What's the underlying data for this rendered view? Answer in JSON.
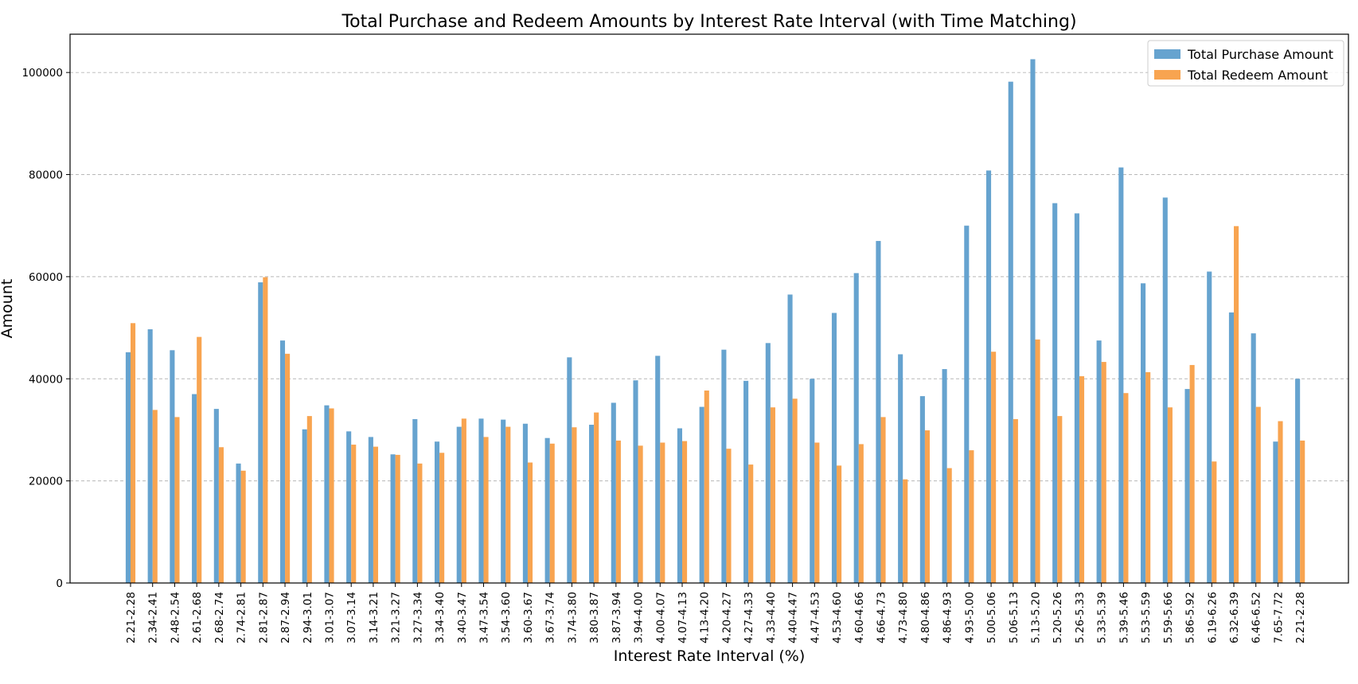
{
  "chart_data": {
    "type": "bar",
    "title": "Total Purchase and Redeem Amounts by Interest Rate Interval (with Time Matching)",
    "xlabel": "Interest Rate Interval (%)",
    "ylabel": "Amount",
    "ylim": [
      0,
      107500
    ],
    "yticks": [
      0,
      20000,
      40000,
      60000,
      80000,
      100000
    ],
    "grid": "y-dashed",
    "legend_position": "top-right",
    "categories": [
      "2.21-2.28",
      "2.34-2.41",
      "2.48-2.54",
      "2.61-2.68",
      "2.68-2.74",
      "2.74-2.81",
      "2.81-2.87",
      "2.87-2.94",
      "2.94-3.01",
      "3.01-3.07",
      "3.07-3.14",
      "3.14-3.21",
      "3.21-3.27",
      "3.27-3.34",
      "3.34-3.40",
      "3.40-3.47",
      "3.47-3.54",
      "3.54-3.60",
      "3.60-3.67",
      "3.67-3.74",
      "3.74-3.80",
      "3.80-3.87",
      "3.87-3.94",
      "3.94-4.00",
      "4.00-4.07",
      "4.07-4.13",
      "4.13-4.20",
      "4.20-4.27",
      "4.27-4.33",
      "4.33-4.40",
      "4.40-4.47",
      "4.47-4.53",
      "4.53-4.60",
      "4.60-4.66",
      "4.66-4.73",
      "4.73-4.80",
      "4.80-4.86",
      "4.86-4.93",
      "4.93-5.00",
      "5.00-5.06",
      "5.06-5.13",
      "5.13-5.20",
      "5.20-5.26",
      "5.26-5.33",
      "5.33-5.39",
      "5.39-5.46",
      "5.53-5.59",
      "5.59-5.66",
      "5.86-5.92",
      "6.19-6.26",
      "6.32-6.39",
      "6.46-6.52",
      "7.65-7.72",
      "2.21-2.28"
    ],
    "series": [
      {
        "name": "Total Purchase Amount",
        "color": "#66a3cf",
        "values": [
          45200,
          49700,
          45600,
          37000,
          34100,
          23400,
          58900,
          47500,
          30100,
          34800,
          29700,
          28600,
          25200,
          32100,
          27700,
          30600,
          32200,
          32000,
          31200,
          28400,
          44200,
          31000,
          35300,
          39700,
          44500,
          30300,
          34500,
          45700,
          39600,
          47000,
          56500,
          40000,
          52900,
          60700,
          67000,
          44800,
          36600,
          41900,
          70000,
          80800,
          98200,
          102600,
          74400,
          72400,
          47500,
          81400,
          58700,
          75500,
          38000,
          61000,
          53000,
          48900,
          27700,
          40000
        ]
      },
      {
        "name": "Total Redeem Amount",
        "color": "#f8a450",
        "values": [
          50900,
          33900,
          32500,
          48200,
          26600,
          22000,
          59900,
          44900,
          32700,
          34200,
          27100,
          26700,
          25100,
          23400,
          25500,
          32200,
          28600,
          30600,
          23600,
          27300,
          30500,
          33400,
          27900,
          26900,
          27500,
          27800,
          37700,
          26300,
          23200,
          34400,
          36100,
          27500,
          23000,
          27200,
          32500,
          20300,
          29900,
          22500,
          26000,
          45300,
          32100,
          47700,
          32700,
          40500,
          43300,
          37200,
          41300,
          34400,
          42700,
          23800,
          69900,
          34500,
          31700,
          27900
        ]
      }
    ]
  }
}
